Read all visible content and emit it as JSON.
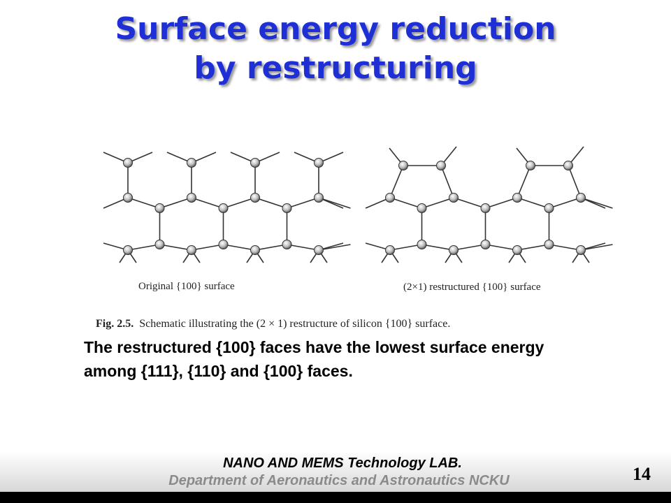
{
  "slide": {
    "title": "Surface energy reduction by restructuring",
    "figure": {
      "left_caption": "Original {100} surface",
      "right_caption": "(2×1) restructured {100} surface",
      "caption_label": "Fig. 2.5.",
      "caption_text": "Schematic illustrating the (2 × 1) restructure of silicon {100} surface."
    },
    "body": "The restructured {100} faces have the lowest surface energy among {111}, {110} and {100} faces.",
    "footer": {
      "lab": "NANO AND MEMS Technology LAB.",
      "department": "Department of Aeronautics and Astronautics NCKU",
      "page": "14"
    }
  }
}
